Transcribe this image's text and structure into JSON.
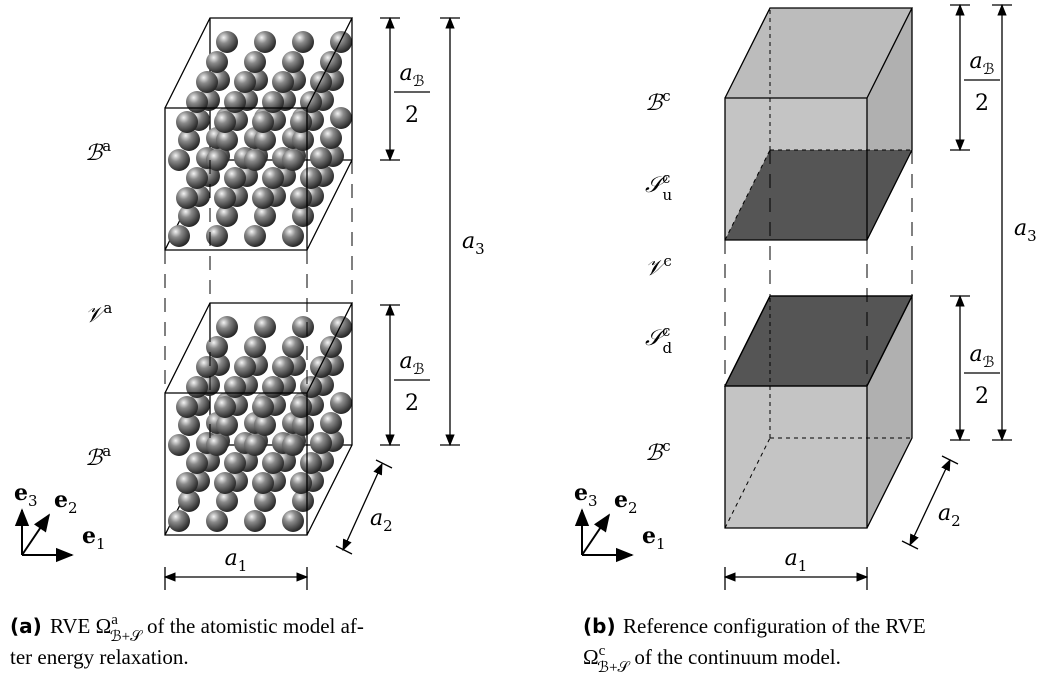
{
  "panel_a": {
    "labels": [
      {
        "base": "ℬ",
        "sup": "a"
      },
      {
        "base": "𝒱",
        "sup": "a"
      },
      {
        "base": "ℬ",
        "sup": "a"
      }
    ],
    "half_top": {
      "base": "a",
      "sub": "ℬ",
      "den": "2"
    },
    "half_bottom": {
      "base": "a",
      "sub": "ℬ",
      "den": "2"
    },
    "a3": {
      "base": "a",
      "sub": "3"
    },
    "a1": {
      "base": "a",
      "sub": "1"
    },
    "a2": {
      "base": "a",
      "sub": "2"
    },
    "e3": {
      "base": "e",
      "sub": "3"
    },
    "e2": {
      "base": "e",
      "sub": "2"
    },
    "e1": {
      "base": "e",
      "sub": "1"
    },
    "caption": {
      "tag": "(a)",
      "line1": {
        "base": "RVE Ω",
        "sup": "a",
        "sub": "ℬ+𝒮",
        "rest": " of the atomistic model af-"
      },
      "line2": "ter energy relaxation."
    }
  },
  "panel_b": {
    "labels": [
      {
        "base": "ℬ",
        "sup": "c"
      },
      {
        "base": "𝒮",
        "sup": "c",
        "sub": "u"
      },
      {
        "base": "𝒱",
        "sup": "c"
      },
      {
        "base": "𝒮",
        "sup": "c",
        "sub": "d"
      },
      {
        "base": "ℬ",
        "sup": "c"
      }
    ],
    "half_top": {
      "base": "a",
      "sub": "ℬ",
      "den": "2"
    },
    "half_bottom": {
      "base": "a",
      "sub": "ℬ",
      "den": "2"
    },
    "a3": {
      "base": "a",
      "sub": "3"
    },
    "a1": {
      "base": "a",
      "sub": "1"
    },
    "a2": {
      "base": "a",
      "sub": "2"
    },
    "e3": {
      "base": "e",
      "sub": "3"
    },
    "e2": {
      "base": "e",
      "sub": "2"
    },
    "e1": {
      "base": "e",
      "sub": "1"
    },
    "caption": {
      "tag": "(b)",
      "line1": {
        "base": "Reference configuration of the RVE"
      },
      "line2": {
        "base": "Ω",
        "sup": "c",
        "sub": "ℬ+𝒮",
        "rest": " of the continuum model."
      }
    }
  }
}
